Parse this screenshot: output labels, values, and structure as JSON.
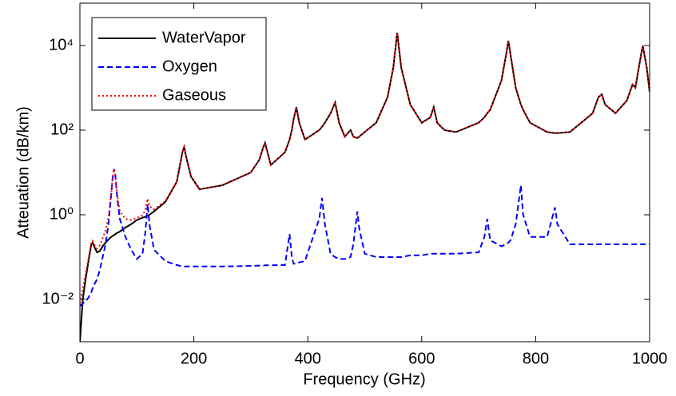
{
  "chart_data": {
    "type": "line",
    "xlabel": "Frequency (GHz)",
    "ylabel": "Atteuation (dB/km)",
    "log_y": true,
    "legend": "upper left",
    "xlim": [
      0,
      1000
    ],
    "xticks": [
      0,
      200,
      400,
      600,
      800,
      1000
    ],
    "ylim": [
      0.001,
      100000
    ],
    "yticks": [
      {
        "value": 0.01,
        "label": "10⁻²"
      },
      {
        "value": 1,
        "label": "10⁰"
      },
      {
        "value": 100,
        "label": "10²"
      },
      {
        "value": 10000,
        "label": "10⁴"
      }
    ],
    "x": [
      0,
      5,
      10,
      15,
      20,
      22,
      25,
      30,
      35,
      40,
      45,
      50,
      55,
      58,
      60,
      62,
      65,
      70,
      80,
      90,
      100,
      110,
      115,
      119,
      122,
      130,
      150,
      170,
      180,
      183,
      186,
      195,
      210,
      250,
      300,
      315,
      322,
      325,
      328,
      335,
      360,
      368,
      372,
      375,
      380,
      385,
      395,
      420,
      425,
      430,
      440,
      448,
      455,
      465,
      475,
      480,
      487,
      490,
      500,
      520,
      540,
      550,
      557,
      564,
      580,
      600,
      615,
      621,
      627,
      640,
      660,
      700,
      710,
      715,
      720,
      740,
      748,
      752,
      756,
      765,
      774,
      778,
      790,
      820,
      834,
      838,
      860,
      900,
      910,
      916,
      922,
      940,
      960,
      970,
      975,
      980,
      988,
      995,
      1000
    ],
    "series": [
      {
        "name": "WaterVapor",
        "color": "#000000",
        "dash": "solid",
        "values": [
          0.001,
          0.01,
          0.03,
          0.08,
          0.2,
          0.22,
          0.18,
          0.13,
          0.14,
          0.18,
          0.22,
          0.26,
          0.3,
          0.32,
          0.33,
          0.35,
          0.37,
          0.4,
          0.5,
          0.6,
          0.75,
          0.85,
          0.9,
          0.95,
          1.0,
          1.2,
          2,
          6,
          30,
          40,
          25,
          8,
          4,
          5,
          10,
          20,
          40,
          50,
          35,
          15,
          30,
          60,
          100,
          180,
          350,
          150,
          60,
          100,
          120,
          150,
          250,
          450,
          150,
          70,
          100,
          70,
          65,
          70,
          90,
          150,
          600,
          3000,
          20000,
          3000,
          400,
          150,
          200,
          350,
          150,
          100,
          90,
          150,
          200,
          250,
          300,
          1500,
          6000,
          13000,
          6000,
          1000,
          400,
          300,
          150,
          90,
          85,
          85,
          90,
          250,
          600,
          700,
          400,
          250,
          500,
          1200,
          1000,
          2500,
          10000,
          3000,
          800
        ]
      },
      {
        "name": "Oxygen",
        "color": "#0000ff",
        "dash": "dashed",
        "values": [
          0.007,
          0.008,
          0.009,
          0.011,
          0.015,
          0.018,
          0.022,
          0.03,
          0.05,
          0.1,
          0.2,
          0.6,
          3,
          9,
          12,
          9,
          3,
          0.8,
          0.3,
          0.15,
          0.09,
          0.12,
          0.4,
          1.8,
          0.6,
          0.15,
          0.08,
          0.065,
          0.06,
          0.06,
          0.06,
          0.06,
          0.06,
          0.06,
          0.062,
          0.063,
          0.063,
          0.064,
          0.064,
          0.064,
          0.065,
          0.35,
          0.1,
          0.07,
          0.07,
          0.075,
          0.08,
          0.8,
          2.5,
          0.6,
          0.12,
          0.1,
          0.09,
          0.09,
          0.1,
          0.2,
          1.2,
          0.5,
          0.12,
          0.1,
          0.1,
          0.1,
          0.1,
          0.1,
          0.11,
          0.11,
          0.12,
          0.12,
          0.12,
          0.12,
          0.12,
          0.13,
          0.3,
          0.8,
          0.25,
          0.18,
          0.2,
          0.22,
          0.25,
          0.6,
          5,
          1,
          0.3,
          0.3,
          1.5,
          0.6,
          0.2,
          0.2,
          0.2,
          0.2,
          0.2,
          0.2,
          0.2,
          0.2,
          0.2,
          0.2,
          0.2,
          0.2,
          0.2
        ]
      },
      {
        "name": "Gaseous",
        "color": "#ff0000",
        "dash": "dotted",
        "values": [
          0.008,
          0.018,
          0.04,
          0.09,
          0.22,
          0.24,
          0.2,
          0.16,
          0.19,
          0.28,
          0.42,
          0.86,
          3.3,
          9.3,
          12,
          9.4,
          3.4,
          1.2,
          0.8,
          0.75,
          0.84,
          0.97,
          1.3,
          2.4,
          1.6,
          1.35,
          2.1,
          6,
          30,
          40,
          25,
          8,
          4,
          5,
          10,
          20,
          40,
          50,
          35,
          15,
          30,
          60,
          100,
          180,
          350,
          150,
          60,
          100,
          120,
          150,
          250,
          450,
          150,
          70,
          100,
          70,
          65,
          70,
          90,
          150,
          600,
          3000,
          20000,
          3000,
          400,
          150,
          200,
          350,
          150,
          100,
          90,
          150,
          200,
          250,
          300,
          1500,
          6000,
          13000,
          6000,
          1000,
          400,
          300,
          150,
          90,
          85,
          85,
          90,
          250,
          600,
          700,
          400,
          250,
          500,
          1200,
          1000,
          2500,
          10000,
          3000,
          800
        ]
      }
    ]
  }
}
